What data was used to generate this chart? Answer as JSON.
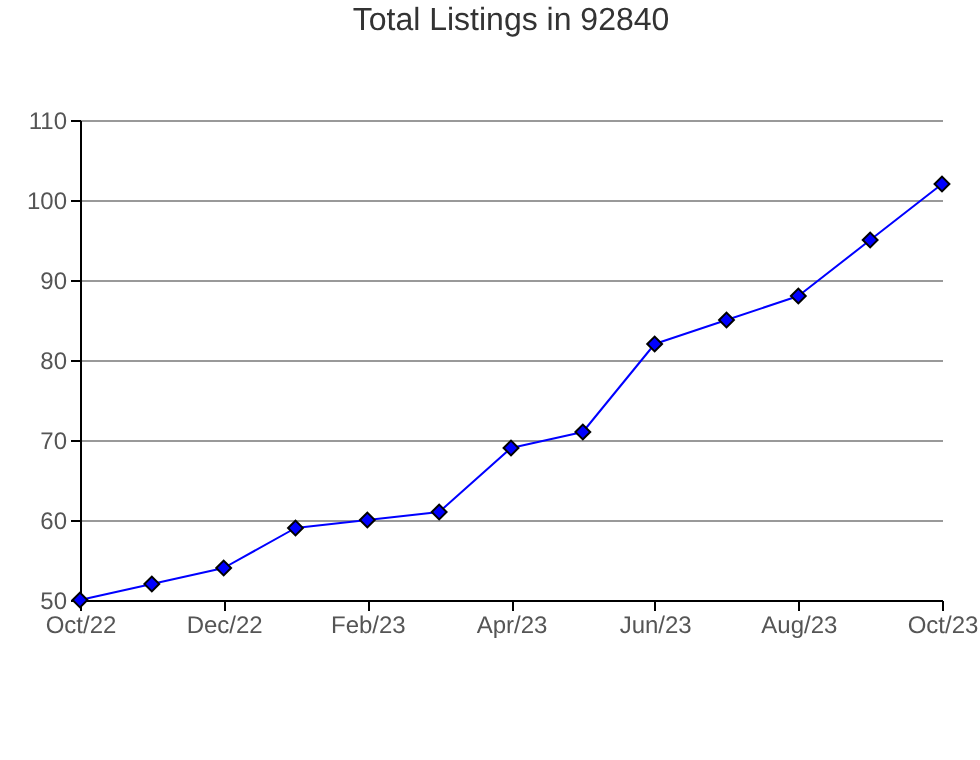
{
  "chart_data": {
    "type": "line",
    "title": "Total Listings in 92840",
    "categories": [
      "Oct/22",
      null,
      "Dec/22",
      null,
      "Feb/23",
      null,
      "Apr/23",
      null,
      "Jun/23",
      null,
      "Aug/23",
      null,
      "Oct/23"
    ],
    "series": [
      {
        "color": "#0000ff",
        "values": [
          50,
          52,
          54,
          59,
          60,
          61,
          69,
          71,
          82,
          85,
          88,
          95,
          102
        ]
      }
    ],
    "ylim": [
      50,
      110
    ],
    "yticks": [
      50,
      60,
      70,
      80,
      90,
      100,
      110
    ],
    "grid": "y",
    "marker": "diamond",
    "line_style": "solid"
  }
}
